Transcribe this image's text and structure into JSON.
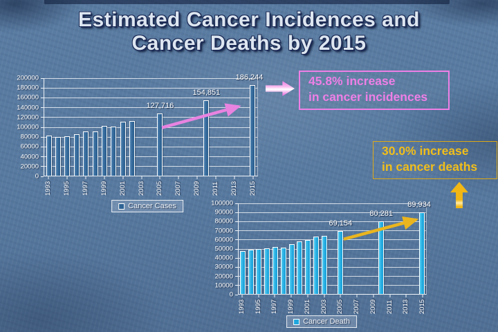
{
  "slide": {
    "title_line1": "Estimated Cancer Incidences and",
    "title_line2": "Cancer Deaths by 2015"
  },
  "callouts": {
    "incidences": {
      "line1": "45.8% increase",
      "line2": "in cancer incidences",
      "accent": "#ee7fe6"
    },
    "deaths": {
      "line1": "30.0% increase",
      "line2": "in cancer deaths",
      "accent": "#f0be1c"
    }
  },
  "chart_data": [
    {
      "id": "cancer_cases",
      "type": "bar",
      "legend": "Cancer Cases",
      "ylim": [
        0,
        200000
      ],
      "ytick_step": 20000,
      "years_domain": [
        1993,
        2015
      ],
      "xticks": [
        1993,
        1995,
        1997,
        1999,
        2001,
        2003,
        2005,
        2007,
        2009,
        2011,
        2013,
        2015
      ],
      "grid_on": true,
      "legend_position": "bottom",
      "bar_fill": "#2e6394",
      "bar_fill_light": "#4d81b0",
      "bar_border": "#ffffff",
      "points": [
        {
          "year": 1993,
          "value": 82000
        },
        {
          "year": 1994,
          "value": 79000
        },
        {
          "year": 1995,
          "value": 81000
        },
        {
          "year": 1996,
          "value": 85000
        },
        {
          "year": 1997,
          "value": 91500
        },
        {
          "year": 1998,
          "value": 91000
        },
        {
          "year": 1999,
          "value": 102000
        },
        {
          "year": 2000,
          "value": 101000
        },
        {
          "year": 2001,
          "value": 111000
        },
        {
          "year": 2002,
          "value": 112000
        },
        {
          "year": 2005,
          "value": 127716
        },
        {
          "year": 2010,
          "value": 154851
        },
        {
          "year": 2015,
          "value": 186244
        }
      ],
      "data_labels": [
        {
          "year": 2005,
          "text": "127,716"
        },
        {
          "year": 2010,
          "text": "154,851"
        },
        {
          "year": 2015,
          "text": "186,244"
        }
      ],
      "trend_arrow": {
        "color": "#e883e0",
        "from": {
          "year": 2005.2,
          "value": 98500
        },
        "to": {
          "year": 2013.5,
          "value": 142000
        }
      }
    },
    {
      "id": "cancer_deaths",
      "type": "bar",
      "legend": "Cancer Death",
      "ylim": [
        0,
        100000
      ],
      "ytick_step": 10000,
      "years_domain": [
        1993,
        2015
      ],
      "xticks": [
        1993,
        1995,
        1997,
        1999,
        2001,
        2003,
        2005,
        2007,
        2009,
        2011,
        2013,
        2015
      ],
      "grid_on": true,
      "legend_position": "bottom",
      "bar_fill": "#1ea6dd",
      "bar_fill_light": "#55cdf2",
      "bar_border": "#ffffff",
      "points": [
        {
          "year": 1993,
          "value": 47000
        },
        {
          "year": 1994,
          "value": 48700
        },
        {
          "year": 1995,
          "value": 50000
        },
        {
          "year": 1996,
          "value": 50500
        },
        {
          "year": 1997,
          "value": 52000
        },
        {
          "year": 1998,
          "value": 51000
        },
        {
          "year": 1999,
          "value": 54600
        },
        {
          "year": 2000,
          "value": 58400
        },
        {
          "year": 2001,
          "value": 59400
        },
        {
          "year": 2002,
          "value": 63200
        },
        {
          "year": 2003,
          "value": 64000
        },
        {
          "year": 2005,
          "value": 69154
        },
        {
          "year": 2010,
          "value": 80281
        },
        {
          "year": 2015,
          "value": 89934
        }
      ],
      "data_labels": [
        {
          "year": 2005,
          "text": "69,154"
        },
        {
          "year": 2010,
          "text": "80,281"
        },
        {
          "year": 2015,
          "text": "89,934"
        }
      ],
      "trend_arrow": {
        "color": "#eab51e",
        "from": {
          "year": 2005.4,
          "value": 60500
        },
        "to": {
          "year": 2014.3,
          "value": 82000
        }
      }
    }
  ]
}
